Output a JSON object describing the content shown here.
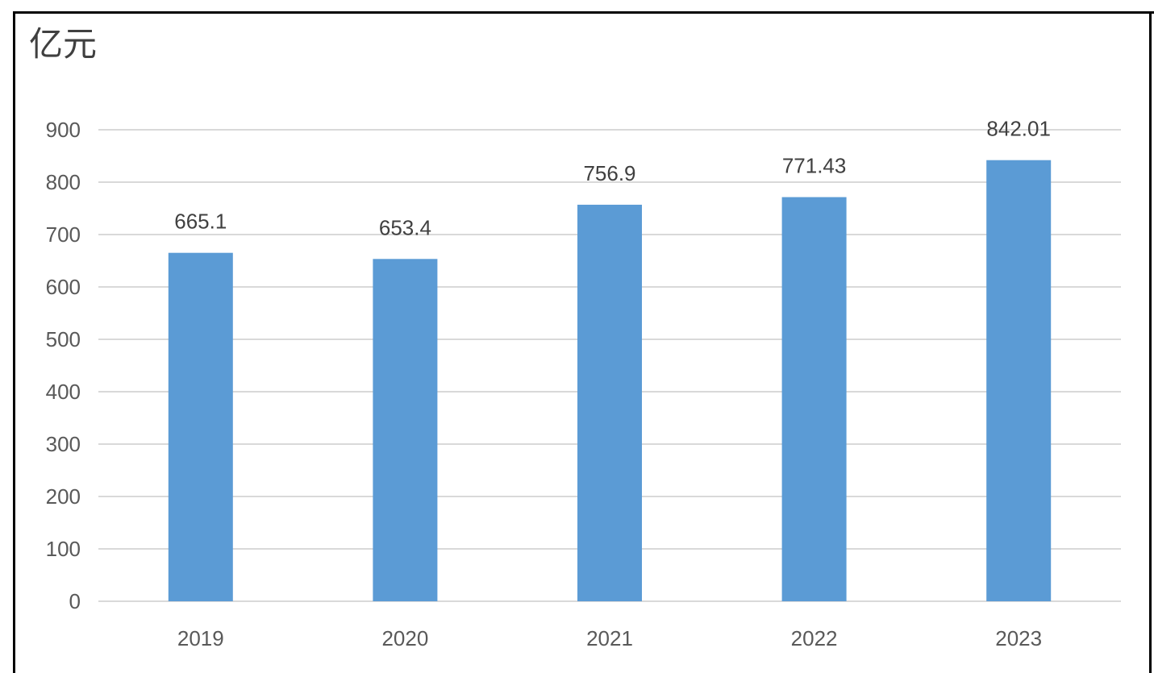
{
  "chart_data": {
    "type": "bar",
    "unit_label": "亿元",
    "categories": [
      "2019",
      "2020",
      "2021",
      "2022",
      "2023"
    ],
    "values": [
      665.1,
      653.4,
      756.9,
      771.43,
      842.01
    ],
    "data_labels": [
      "665.1",
      "653.4",
      "756.9",
      "771.43",
      "842.01"
    ],
    "y_ticks": [
      0,
      100,
      200,
      300,
      400,
      500,
      600,
      700,
      800,
      900
    ],
    "ylim": [
      0,
      900
    ],
    "grid": true,
    "legend": "none",
    "bar_color": "#5b9bd5",
    "grid_color": "#d9d9d9"
  }
}
